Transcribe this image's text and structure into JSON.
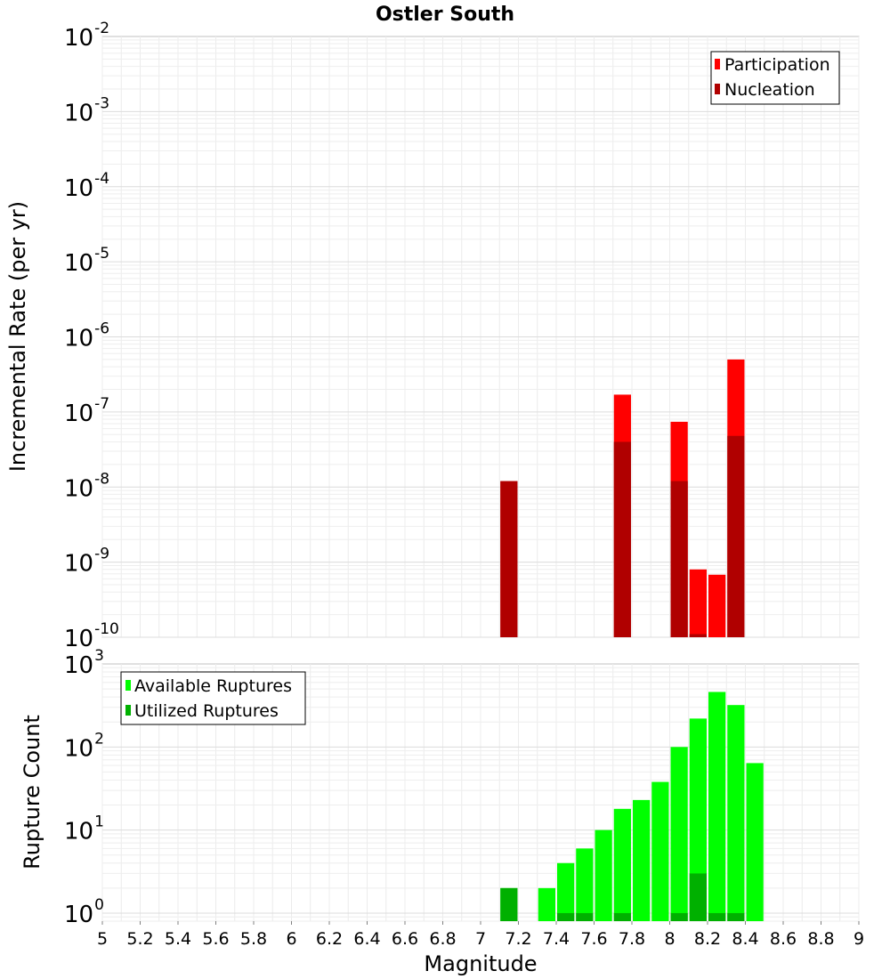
{
  "chart_data": [
    {
      "type": "bar",
      "title": "Ostler South",
      "xlabel": "",
      "ylabel": "Incremental Rate (per yr)",
      "xlim": [
        5,
        9
      ],
      "ylim": [
        1e-10,
        0.01
      ],
      "yscale": "log",
      "grid": true,
      "legend_position": "top-right",
      "bin_width": 0.1,
      "series": [
        {
          "name": "Participation",
          "color": "#ff0000",
          "points": [
            {
              "x": 7.15,
              "y": 1.2e-08
            },
            {
              "x": 7.75,
              "y": 1.7e-07
            },
            {
              "x": 8.05,
              "y": 7.4e-08
            },
            {
              "x": 8.15,
              "y": 8e-10
            },
            {
              "x": 8.25,
              "y": 6.8e-10
            },
            {
              "x": 8.35,
              "y": 5e-07
            }
          ]
        },
        {
          "name": "Nucleation",
          "color": "#b00000",
          "points": [
            {
              "x": 7.15,
              "y": 1.2e-08
            },
            {
              "x": 7.75,
              "y": 4e-08
            },
            {
              "x": 8.05,
              "y": 1.2e-08
            },
            {
              "x": 8.15,
              "y": 1.1e-10
            },
            {
              "x": 8.35,
              "y": 4.8e-08
            }
          ]
        }
      ]
    },
    {
      "type": "bar",
      "title": "",
      "xlabel": "Magnitude",
      "ylabel": "Rupture Count",
      "xlim": [
        5,
        9
      ],
      "ylim": [
        0.8,
        1000
      ],
      "yscale": "log",
      "grid": true,
      "legend_position": "top-left",
      "bin_width": 0.1,
      "x_ticks": [
        "5",
        "5.2",
        "5.4",
        "5.6",
        "5.8",
        "6",
        "6.2",
        "6.4",
        "6.6",
        "6.8",
        "7",
        "7.2",
        "7.4",
        "7.6",
        "7.8",
        "8",
        "8.2",
        "8.4",
        "8.6",
        "8.8",
        "9"
      ],
      "series": [
        {
          "name": "Available Ruptures",
          "color": "#00ff00",
          "points": [
            {
              "x": 7.15,
              "y": 2
            },
            {
              "x": 7.35,
              "y": 2
            },
            {
              "x": 7.45,
              "y": 4
            },
            {
              "x": 7.55,
              "y": 6
            },
            {
              "x": 7.65,
              "y": 10
            },
            {
              "x": 7.75,
              "y": 18
            },
            {
              "x": 7.85,
              "y": 23
            },
            {
              "x": 7.95,
              "y": 38
            },
            {
              "x": 8.05,
              "y": 100
            },
            {
              "x": 8.15,
              "y": 220
            },
            {
              "x": 8.25,
              "y": 460
            },
            {
              "x": 8.35,
              "y": 320
            },
            {
              "x": 8.45,
              "y": 64
            }
          ]
        },
        {
          "name": "Utilized Ruptures",
          "color": "#00b000",
          "points": [
            {
              "x": 7.15,
              "y": 2
            },
            {
              "x": 7.45,
              "y": 1
            },
            {
              "x": 7.55,
              "y": 1
            },
            {
              "x": 7.75,
              "y": 1
            },
            {
              "x": 8.05,
              "y": 1
            },
            {
              "x": 8.15,
              "y": 3
            },
            {
              "x": 8.25,
              "y": 1
            },
            {
              "x": 8.35,
              "y": 1
            }
          ]
        }
      ]
    }
  ]
}
